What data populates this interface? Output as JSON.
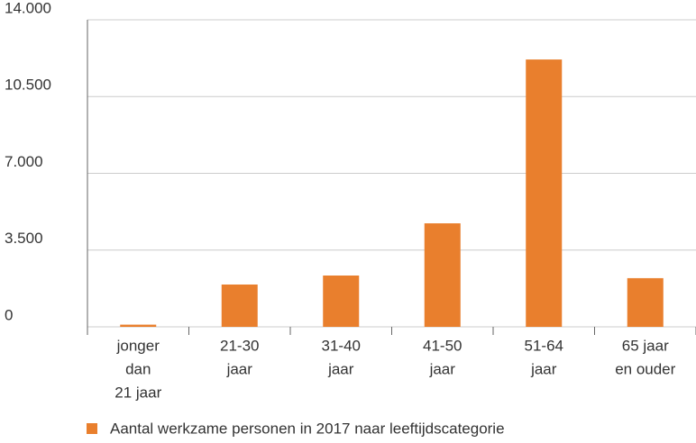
{
  "chart_data": {
    "type": "bar",
    "categories": [
      [
        "jonger",
        "dan",
        "21 jaar"
      ],
      [
        "21-30",
        "jaar"
      ],
      [
        "31-40",
        "jaar"
      ],
      [
        "41-50",
        "jaar"
      ],
      [
        "51-64",
        "jaar"
      ],
      [
        "65 jaar",
        "en ouder"
      ]
    ],
    "series": [
      {
        "name": "Aantal werkzame personen in 2017 naar leeftijdscategorie",
        "color": "#e97f2d",
        "values": [
          100,
          1930,
          2340,
          4720,
          12190,
          2220
        ]
      }
    ],
    "ylim": [
      0,
      14000
    ],
    "yticks": [
      0,
      {
        "value": 3500,
        "label": "3.500"
      },
      {
        "value": 7000,
        "label": "7.000"
      },
      {
        "value": 10500,
        "label": "10.500"
      },
      {
        "value": 14000,
        "label": "14.000"
      }
    ],
    "grid": true,
    "legend": "bottom"
  }
}
